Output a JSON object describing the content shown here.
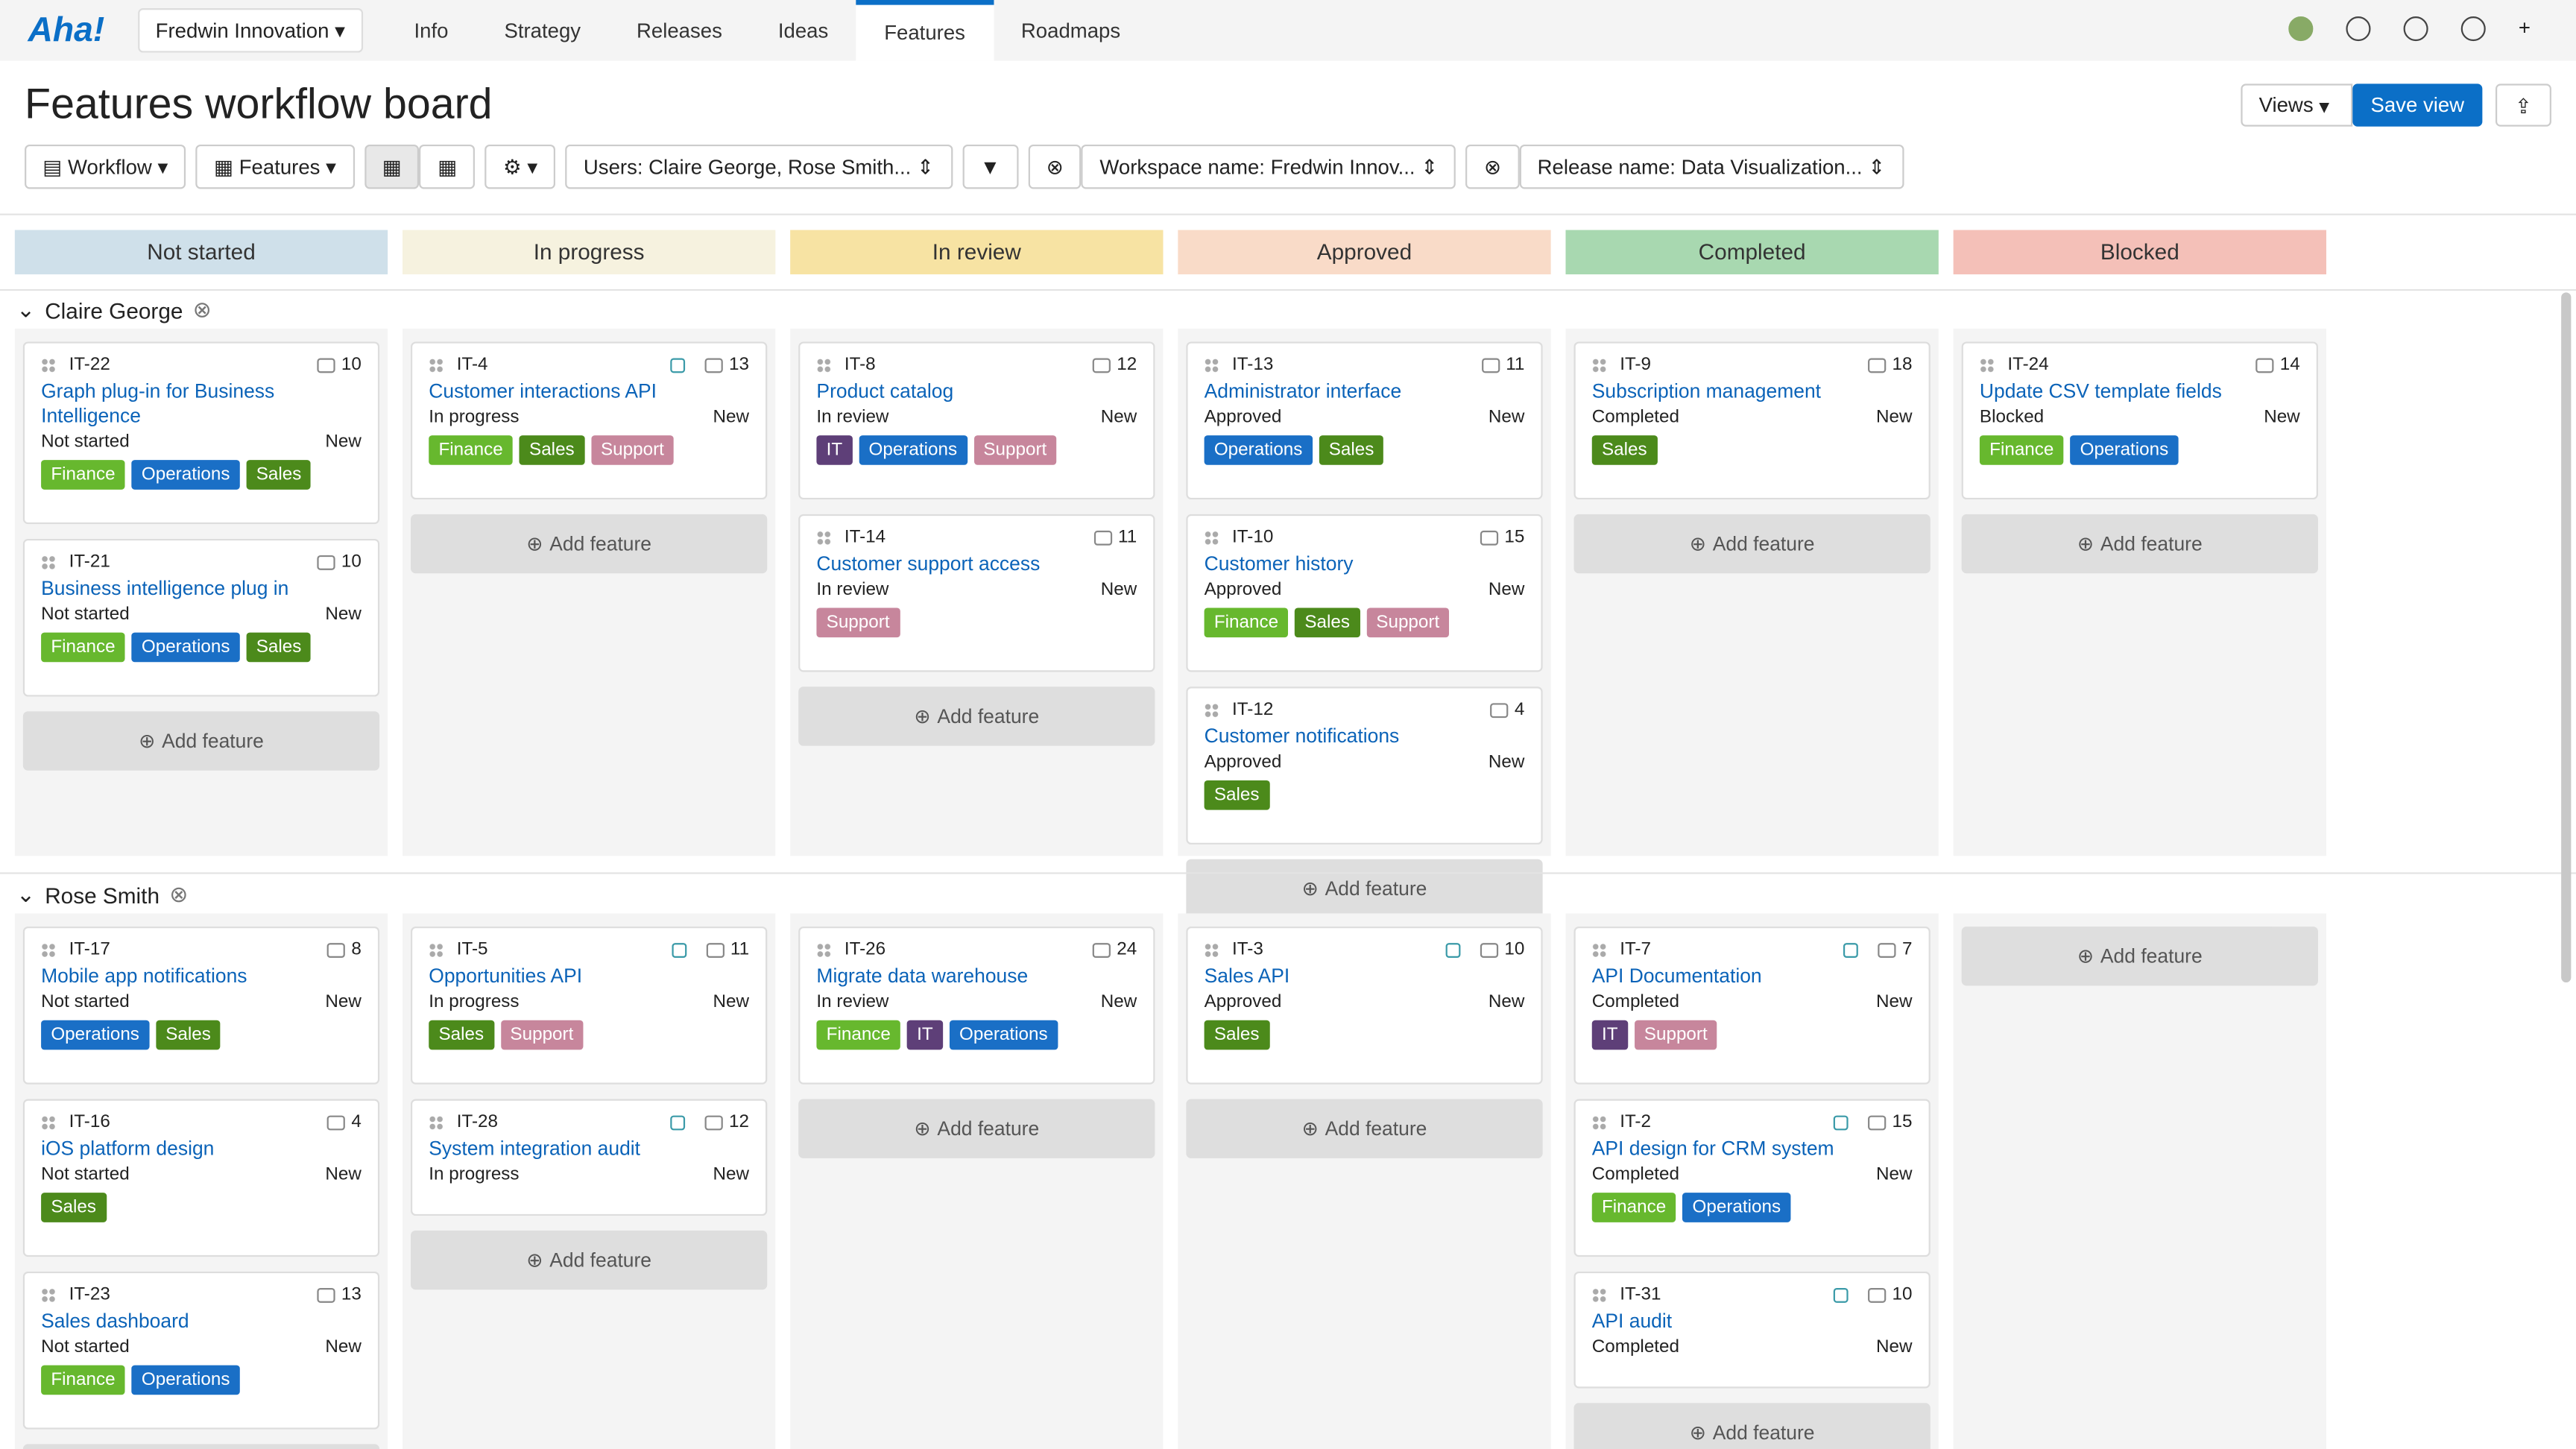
{
  "nav": {
    "logo": "Aha!",
    "workspace": "Fredwin Innovation",
    "tabs": [
      "Info",
      "Strategy",
      "Releases",
      "Ideas",
      "Features",
      "Roadmaps"
    ],
    "active_tab": 4
  },
  "header": {
    "title": "Features workflow board",
    "views": "Views",
    "save_view": "Save view"
  },
  "toolbar": {
    "workflow": "Workflow",
    "features": "Features",
    "users_filter": "Users: Claire George, Rose Smith...",
    "workspace_filter": "Workspace name: Fredwin Innov...",
    "release_filter": "Release name: Data Visualization..."
  },
  "columns": [
    {
      "name": "Not started",
      "color": "#cfe0ea"
    },
    {
      "name": "In progress",
      "color": "#f6f2df"
    },
    {
      "name": "In review",
      "color": "#f7e3a3"
    },
    {
      "name": "Approved",
      "color": "#f9dbc8"
    },
    {
      "name": "Completed",
      "color": "#a8d8b0"
    },
    {
      "name": "Blocked",
      "color": "#f4c0b8"
    }
  ],
  "add_feature": "Add feature",
  "tag_colors": {
    "Finance": "#67b82e",
    "Operations": "#1a6fc6",
    "Sales": "#4c8a1b",
    "Support": "#c7869c",
    "IT": "#5e3f78"
  },
  "groups": [
    {
      "name": "Claire George",
      "columns": [
        [
          {
            "id": "IT-22",
            "title": "Graph plug-in for Business Intelligence",
            "status": "Not started",
            "stage": "New",
            "comments": 10,
            "hierarchy": false,
            "tags": [
              "Finance",
              "Operations",
              "Sales"
            ]
          },
          {
            "id": "IT-21",
            "title": "Business intelligence plug in",
            "status": "Not started",
            "stage": "New",
            "comments": 10,
            "hierarchy": false,
            "tags": [
              "Finance",
              "Operations",
              "Sales"
            ]
          }
        ],
        [
          {
            "id": "IT-4",
            "title": "Customer interactions API",
            "status": "In progress",
            "stage": "New",
            "comments": 13,
            "hierarchy": true,
            "tags": [
              "Finance",
              "Sales",
              "Support"
            ]
          }
        ],
        [
          {
            "id": "IT-8",
            "title": "Product catalog",
            "status": "In review",
            "stage": "New",
            "comments": 12,
            "hierarchy": false,
            "tags": [
              "IT",
              "Operations",
              "Support"
            ]
          },
          {
            "id": "IT-14",
            "title": "Customer support access",
            "status": "In review",
            "stage": "New",
            "comments": 11,
            "hierarchy": false,
            "tags": [
              "Support"
            ]
          }
        ],
        [
          {
            "id": "IT-13",
            "title": "Administrator interface",
            "status": "Approved",
            "stage": "New",
            "comments": 11,
            "hierarchy": false,
            "tags": [
              "Operations",
              "Sales"
            ]
          },
          {
            "id": "IT-10",
            "title": "Customer history",
            "status": "Approved",
            "stage": "New",
            "comments": 15,
            "hierarchy": false,
            "tags": [
              "Finance",
              "Sales",
              "Support"
            ]
          },
          {
            "id": "IT-12",
            "title": "Customer notifications",
            "status": "Approved",
            "stage": "New",
            "comments": 4,
            "hierarchy": false,
            "tags": [
              "Sales"
            ]
          }
        ],
        [
          {
            "id": "IT-9",
            "title": "Subscription management",
            "status": "Completed",
            "stage": "New",
            "comments": 18,
            "hierarchy": false,
            "tags": [
              "Sales"
            ]
          }
        ],
        [
          {
            "id": "IT-24",
            "title": "Update CSV template fields",
            "status": "Blocked",
            "stage": "New",
            "comments": 14,
            "hierarchy": false,
            "tags": [
              "Finance",
              "Operations"
            ]
          }
        ]
      ]
    },
    {
      "name": "Rose Smith",
      "columns": [
        [
          {
            "id": "IT-17",
            "title": "Mobile app notifications",
            "status": "Not started",
            "stage": "New",
            "comments": 8,
            "hierarchy": false,
            "tags": [
              "Operations",
              "Sales"
            ]
          },
          {
            "id": "IT-16",
            "title": "iOS platform design",
            "status": "Not started",
            "stage": "New",
            "comments": 4,
            "hierarchy": false,
            "tags": [
              "Sales"
            ]
          },
          {
            "id": "IT-23",
            "title": "Sales dashboard",
            "status": "Not started",
            "stage": "New",
            "comments": 13,
            "hierarchy": false,
            "tags": [
              "Finance",
              "Operations"
            ]
          }
        ],
        [
          {
            "id": "IT-5",
            "title": "Opportunities API",
            "status": "In progress",
            "stage": "New",
            "comments": 11,
            "hierarchy": true,
            "tags": [
              "Sales",
              "Support"
            ]
          },
          {
            "id": "IT-28",
            "title": "System integration audit",
            "status": "In progress",
            "stage": "New",
            "comments": 12,
            "hierarchy": true,
            "tags": []
          }
        ],
        [
          {
            "id": "IT-26",
            "title": "Migrate data warehouse",
            "status": "In review",
            "stage": "New",
            "comments": 24,
            "hierarchy": false,
            "tags": [
              "Finance",
              "IT",
              "Operations"
            ]
          }
        ],
        [
          {
            "id": "IT-3",
            "title": "Sales API",
            "status": "Approved",
            "stage": "New",
            "comments": 10,
            "hierarchy": true,
            "tags": [
              "Sales"
            ]
          }
        ],
        [
          {
            "id": "IT-7",
            "title": "API Documentation",
            "status": "Completed",
            "stage": "New",
            "comments": 7,
            "hierarchy": true,
            "tags": [
              "IT",
              "Support"
            ]
          },
          {
            "id": "IT-2",
            "title": "API design for CRM system",
            "status": "Completed",
            "stage": "New",
            "comments": 15,
            "hierarchy": true,
            "tags": [
              "Finance",
              "Operations"
            ]
          },
          {
            "id": "IT-31",
            "title": "API audit",
            "status": "Completed",
            "stage": "New",
            "comments": 10,
            "hierarchy": true,
            "tags": []
          }
        ],
        []
      ]
    }
  ]
}
